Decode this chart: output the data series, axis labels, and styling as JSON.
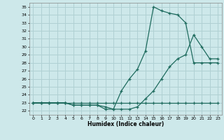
{
  "title": "",
  "xlabel": "Humidex (Indice chaleur)",
  "bg_color": "#cde8ea",
  "grid_color": "#b0d0d3",
  "line_color": "#1e6b5e",
  "xlim": [
    -0.5,
    23.5
  ],
  "ylim": [
    21.5,
    35.5
  ],
  "xticks": [
    0,
    1,
    2,
    3,
    4,
    5,
    6,
    7,
    8,
    9,
    10,
    11,
    12,
    13,
    14,
    15,
    16,
    17,
    18,
    19,
    20,
    21,
    22,
    23
  ],
  "yticks": [
    22,
    23,
    24,
    25,
    26,
    27,
    28,
    29,
    30,
    31,
    32,
    33,
    34,
    35
  ],
  "line1_x": [
    0,
    1,
    2,
    3,
    4,
    5,
    6,
    7,
    8,
    9,
    10,
    11,
    12,
    13,
    14,
    15,
    16,
    17,
    18,
    19,
    20,
    21,
    22,
    23
  ],
  "line1_y": [
    23,
    23,
    23,
    23,
    23,
    23,
    23,
    23,
    23,
    23,
    23,
    23,
    23,
    23,
    23,
    23,
    23,
    23,
    23,
    23,
    23,
    23,
    23,
    23
  ],
  "line2_x": [
    0,
    1,
    2,
    3,
    4,
    5,
    6,
    7,
    8,
    9,
    10,
    11,
    12,
    13,
    14,
    15,
    16,
    17,
    18,
    19,
    20,
    21,
    22,
    23
  ],
  "line2_y": [
    23,
    23,
    23,
    23,
    23,
    22.7,
    22.7,
    22.7,
    22.7,
    22.5,
    22.2,
    22.2,
    22.2,
    22.5,
    23.5,
    24.5,
    26,
    27.5,
    28.5,
    29,
    31.5,
    30,
    28.5,
    28.5
  ],
  "line3_x": [
    0,
    1,
    2,
    3,
    4,
    5,
    6,
    7,
    8,
    9,
    10,
    11,
    12,
    13,
    14,
    15,
    16,
    17,
    18,
    19,
    20,
    21,
    22,
    23
  ],
  "line3_y": [
    23,
    23,
    23,
    23,
    23,
    22.7,
    22.7,
    22.7,
    22.7,
    22.2,
    22.2,
    24.5,
    26,
    27.2,
    29.5,
    35,
    34.5,
    34.2,
    34,
    33,
    28,
    28,
    28,
    28
  ]
}
